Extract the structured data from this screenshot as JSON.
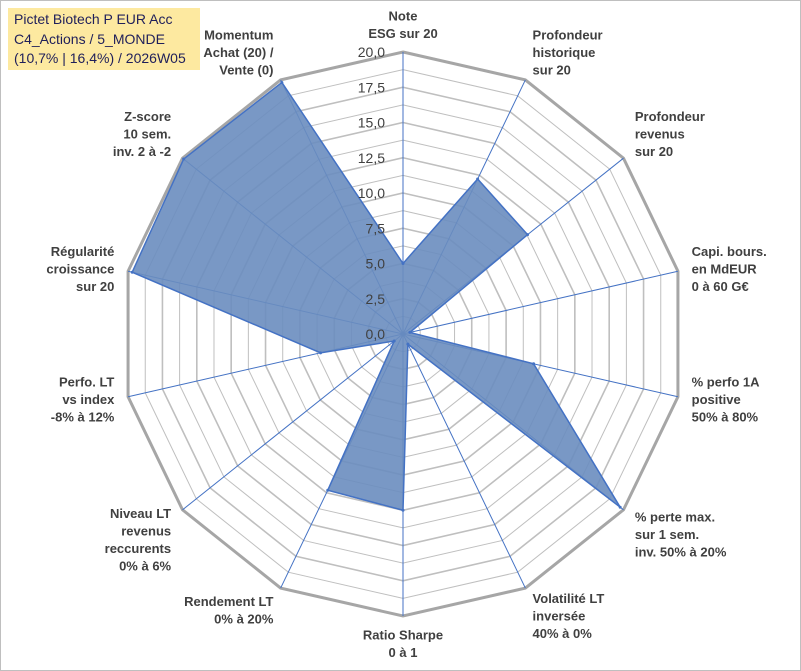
{
  "title_box": {
    "line1": "Pictet Biotech P EUR Acc",
    "line2": "C4_Actions / 5_MONDE",
    "line3": "(10,7% | 16,4%) / 2026W05"
  },
  "colors": {
    "fill": "#6a8dbf",
    "series_line": "#4472c4",
    "ring": "#bfbfbf",
    "ring_outer": "#a6a6a6",
    "spoke": "#4472c4",
    "title_bg": "#fde9a0"
  },
  "chart_data": {
    "type": "radar",
    "rmax": 20,
    "ticks": [
      "0,0",
      "2,5",
      "5,0",
      "7,5",
      "10,0",
      "12,5",
      "15,0",
      "17,5",
      "20,0"
    ],
    "axes": [
      {
        "lines": [
          "Note",
          "ESG sur 20"
        ]
      },
      {
        "lines": [
          "Profondeur",
          "historique",
          "sur 20"
        ]
      },
      {
        "lines": [
          "Profondeur",
          "revenus",
          "sur 20"
        ]
      },
      {
        "lines": [
          "Capi. bours.",
          "en MdEUR",
          "0 à 60 G€"
        ]
      },
      {
        "lines": [
          "% perfo 1A",
          "positive",
          "50% à 80%"
        ]
      },
      {
        "lines": [
          "% perte max.",
          "sur 1 sem.",
          "inv. 50% à 20%"
        ]
      },
      {
        "lines": [
          "Volatilité LT",
          "inversée",
          "40% à 0%"
        ]
      },
      {
        "lines": [
          "Ratio Sharpe",
          "0 à 1"
        ]
      },
      {
        "lines": [
          "Rendement LT",
          "0% à 20%"
        ]
      },
      {
        "lines": [
          "Niveau LT",
          "revenus",
          "reccurents",
          "0% à 6%"
        ]
      },
      {
        "lines": [
          "Perfo. LT",
          "vs index",
          "-8% à 12%"
        ]
      },
      {
        "lines": [
          "Régularité",
          "croissance",
          "sur 20"
        ]
      },
      {
        "lines": [
          "Z-score",
          "10 sem.",
          "inv. 2 à -2"
        ]
      },
      {
        "lines": [
          "Momentum",
          "Achat (20) /",
          "Vente (0)"
        ]
      }
    ],
    "series": [
      {
        "name": "Pictet Biotech P EUR Acc",
        "values": [
          5.0,
          12.2,
          11.3,
          0.5,
          9.5,
          19.7,
          0.8,
          12.5,
          12.3,
          0.8,
          6.0,
          19.7,
          19.9,
          19.8
        ]
      }
    ]
  }
}
